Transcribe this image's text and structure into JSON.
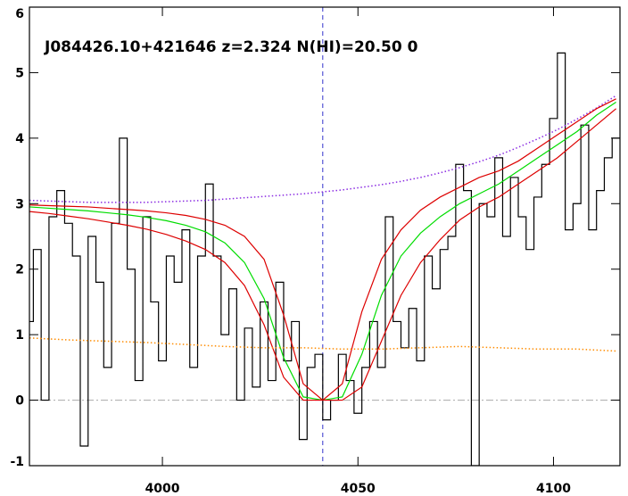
{
  "chart_data": {
    "type": "line",
    "title": "J084426.10+421646 z=2.324 N(HI)=20.50 0",
    "xlim": [
      3966,
      4117
    ],
    "ylim": [
      -1,
      6
    ],
    "xticks": [
      4000,
      4050,
      4100
    ],
    "yticks": [
      -1,
      0,
      1,
      2,
      3,
      4,
      5,
      6
    ],
    "vline": 4041,
    "hline": 0,
    "series": [
      {
        "style": "steps",
        "color": "#000000",
        "x": [
          3966,
          3968,
          3970,
          3972,
          3974,
          3976,
          3978,
          3980,
          3982,
          3984,
          3986,
          3988,
          3990,
          3992,
          3994,
          3996,
          3998,
          4000,
          4002,
          4004,
          4006,
          4008,
          4010,
          4012,
          4014,
          4016,
          4018,
          4020,
          4022,
          4024,
          4026,
          4028,
          4030,
          4032,
          4034,
          4036,
          4038,
          4040,
          4042,
          4044,
          4046,
          4048,
          4050,
          4052,
          4054,
          4056,
          4058,
          4060,
          4062,
          4064,
          4066,
          4068,
          4070,
          4072,
          4074,
          4076,
          4078,
          4080,
          4082,
          4084,
          4086,
          4088,
          4090,
          4092,
          4094,
          4096,
          4098,
          4100,
          4102,
          4104,
          4106,
          4108,
          4110,
          4112,
          4114,
          4116
        ],
        "values": [
          1.2,
          2.3,
          0.0,
          2.8,
          3.2,
          2.7,
          2.2,
          -0.7,
          2.5,
          1.8,
          0.5,
          2.7,
          4.0,
          2.0,
          0.3,
          2.8,
          1.5,
          0.6,
          2.2,
          1.8,
          2.6,
          0.5,
          2.2,
          3.3,
          2.2,
          1.0,
          1.7,
          0.0,
          1.1,
          0.2,
          1.5,
          0.3,
          1.8,
          0.6,
          1.2,
          -0.6,
          0.5,
          0.7,
          -0.3,
          0.0,
          0.7,
          0.3,
          -0.2,
          0.5,
          1.2,
          0.5,
          2.8,
          1.2,
          0.8,
          1.4,
          0.6,
          2.2,
          1.7,
          2.3,
          2.5,
          3.6,
          3.2,
          -1.0,
          3.0,
          2.8,
          3.7,
          2.5,
          3.4,
          2.8,
          2.3,
          3.1,
          3.6,
          4.3,
          5.3,
          2.6,
          3.0,
          4.2,
          2.6,
          3.2,
          3.7,
          4.0
        ]
      },
      {
        "style": "dotted",
        "color": "#8a2be2",
        "x": [
          3966,
          3971,
          3976,
          3981,
          3986,
          3991,
          3996,
          4001,
          4006,
          4011,
          4016,
          4021,
          4026,
          4031,
          4036,
          4041,
          4046,
          4051,
          4056,
          4061,
          4066,
          4071,
          4076,
          4081,
          4086,
          4091,
          4096,
          4101,
          4106,
          4111,
          4116
        ],
        "values": [
          3.05,
          3.04,
          3.03,
          3.02,
          3.02,
          3.02,
          3.02,
          3.03,
          3.04,
          3.05,
          3.07,
          3.09,
          3.11,
          3.13,
          3.15,
          3.18,
          3.21,
          3.25,
          3.29,
          3.34,
          3.4,
          3.47,
          3.55,
          3.64,
          3.74,
          3.86,
          3.99,
          4.13,
          4.29,
          4.46,
          4.65
        ]
      },
      {
        "style": "line",
        "color": "#00dd00",
        "x": [
          3966,
          3971,
          3976,
          3981,
          3986,
          3991,
          3996,
          4001,
          4006,
          4011,
          4016,
          4021,
          4026,
          4031,
          4036,
          4041,
          4046,
          4051,
          4056,
          4061,
          4066,
          4071,
          4076,
          4081,
          4086,
          4091,
          4096,
          4101,
          4106,
          4111,
          4116
        ],
        "values": [
          2.95,
          2.93,
          2.91,
          2.89,
          2.86,
          2.83,
          2.79,
          2.74,
          2.67,
          2.57,
          2.4,
          2.1,
          1.55,
          0.65,
          0.05,
          0.0,
          0.05,
          0.7,
          1.6,
          2.2,
          2.55,
          2.8,
          3.0,
          3.15,
          3.3,
          3.5,
          3.7,
          3.9,
          4.1,
          4.35,
          4.55
        ]
      },
      {
        "style": "line",
        "color": "#dd0000",
        "x": [
          3966,
          3971,
          3976,
          3981,
          3986,
          3991,
          3996,
          4001,
          4006,
          4011,
          4016,
          4021,
          4026,
          4031,
          4036,
          4041,
          4046,
          4051,
          4056,
          4061,
          4066,
          4071,
          4076,
          4081,
          4086,
          4091,
          4096,
          4101,
          4106,
          4111,
          4116
        ],
        "values": [
          2.98,
          2.97,
          2.96,
          2.95,
          2.93,
          2.91,
          2.89,
          2.86,
          2.82,
          2.76,
          2.67,
          2.5,
          2.15,
          1.3,
          0.25,
          0.0,
          0.25,
          1.35,
          2.15,
          2.6,
          2.9,
          3.1,
          3.25,
          3.4,
          3.5,
          3.65,
          3.85,
          4.05,
          4.25,
          4.45,
          4.6
        ]
      },
      {
        "style": "line",
        "color": "#dd0000",
        "x": [
          3966,
          3971,
          3976,
          3981,
          3986,
          3991,
          3996,
          4001,
          4006,
          4011,
          4016,
          4021,
          4026,
          4031,
          4036,
          4041,
          4046,
          4051,
          4056,
          4061,
          4066,
          4071,
          4076,
          4081,
          4086,
          4091,
          4096,
          4101,
          4106,
          4111,
          4116
        ],
        "values": [
          2.88,
          2.85,
          2.81,
          2.77,
          2.72,
          2.67,
          2.61,
          2.53,
          2.43,
          2.3,
          2.1,
          1.75,
          1.15,
          0.35,
          0.0,
          0.0,
          0.0,
          0.2,
          0.9,
          1.6,
          2.1,
          2.45,
          2.75,
          2.95,
          3.1,
          3.3,
          3.5,
          3.7,
          3.95,
          4.2,
          4.45
        ]
      },
      {
        "style": "dotted",
        "color": "#ff8c00",
        "x": [
          3966,
          3976,
          3986,
          3996,
          4006,
          4016,
          4026,
          4036,
          4046,
          4056,
          4066,
          4076,
          4086,
          4096,
          4106,
          4116
        ],
        "values": [
          0.95,
          0.92,
          0.9,
          0.88,
          0.85,
          0.82,
          0.8,
          0.8,
          0.78,
          0.78,
          0.8,
          0.82,
          0.8,
          0.78,
          0.78,
          0.75
        ]
      }
    ]
  }
}
